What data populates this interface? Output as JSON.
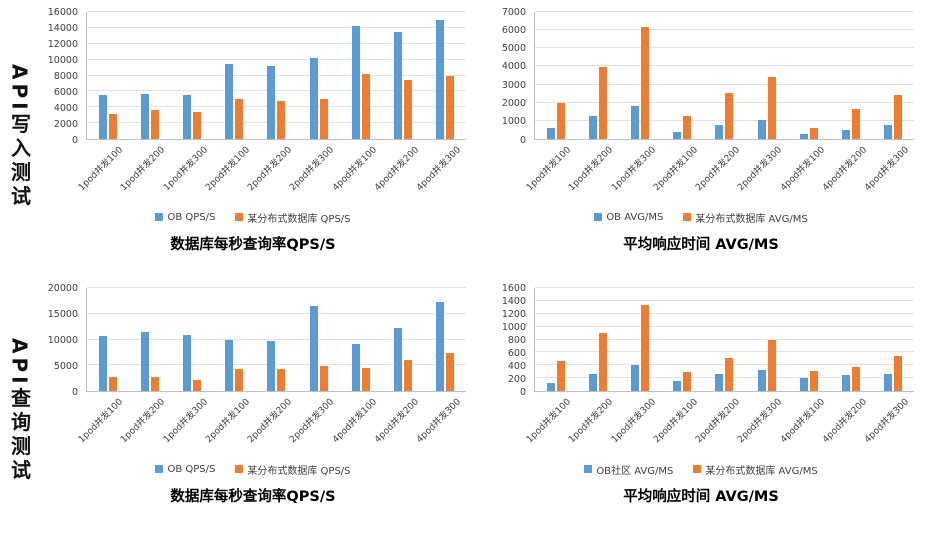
{
  "rows": [
    {
      "label": "API写入测试"
    },
    {
      "label": "API查询测试"
    }
  ],
  "colors": {
    "series_blue": "#5B9BD5",
    "series_orange": "#ED7D31"
  },
  "chart_data": [
    {
      "type": "bar",
      "title": "数据库每秒查询率QPS/S",
      "categories": [
        "1pod并发100",
        "1pod并发200",
        "1pod并发300",
        "2pod并发100",
        "2pod并发200",
        "2pod并发300",
        "4pod并发100",
        "4pod并发200",
        "4pod并发300"
      ],
      "series": [
        {
          "name": "OB QPS/S",
          "color": "#5B9BD5",
          "values": [
            5600,
            5700,
            5600,
            9500,
            9200,
            10200,
            14300,
            13500,
            15000
          ]
        },
        {
          "name": "某分布式数据库 QPS/S",
          "color": "#ED7D31",
          "values": [
            3100,
            3600,
            3400,
            5100,
            4800,
            5000,
            8200,
            7400,
            8000
          ]
        }
      ],
      "ylim": [
        0,
        16000
      ],
      "ytick_step": 2000,
      "grid": true,
      "legend_position": "bottom"
    },
    {
      "type": "bar",
      "title": "平均响应时间 AVG/MS",
      "categories": [
        "1pod并发100",
        "1pod并发200",
        "1pod并发300",
        "2pod并发100",
        "2pod并发200",
        "2pod并发300",
        "4pod并发100",
        "4pod并发200",
        "4pod并发300"
      ],
      "series": [
        {
          "name": "OB AVG/MS",
          "color": "#5B9BD5",
          "values": [
            600,
            1250,
            1800,
            400,
            750,
            1050,
            300,
            520,
            750
          ]
        },
        {
          "name": "某分布式数据库 AVG/MS",
          "color": "#ED7D31",
          "values": [
            2000,
            3950,
            6200,
            1250,
            2550,
            3400,
            620,
            1650,
            2400
          ]
        }
      ],
      "ylim": [
        0,
        7000
      ],
      "ytick_step": 1000,
      "grid": true,
      "legend_position": "bottom"
    },
    {
      "type": "bar",
      "title": "数据库每秒查询率QPS/S",
      "categories": [
        "1pod并发100",
        "1pod并发200",
        "1pod并发300",
        "2pod并发100",
        "2pod并发200",
        "2pod并发300",
        "4pod并发100",
        "4pod并发200",
        "4pod并发300"
      ],
      "series": [
        {
          "name": "OB QPS/S",
          "color": "#5B9BD5",
          "values": [
            10700,
            11500,
            10900,
            9900,
            9700,
            16500,
            9200,
            12300,
            17300
          ]
        },
        {
          "name": "某分布式数据库 QPS/S",
          "color": "#ED7D31",
          "values": [
            2700,
            2800,
            2100,
            4300,
            4200,
            4800,
            4400,
            6100,
            7300
          ]
        }
      ],
      "ylim": [
        0,
        20000
      ],
      "ytick_step": 5000,
      "grid": true,
      "legend_position": "bottom"
    },
    {
      "type": "bar",
      "title": "平均响应时间 AVG/MS",
      "categories": [
        "1pod并发100",
        "1pod并发200",
        "1pod并发300",
        "2pod并发100",
        "2pod并发200",
        "2pod并发300",
        "4pod并发100",
        "4pod并发200",
        "4pod并发300"
      ],
      "series": [
        {
          "name": "OB社区 AVG/MS",
          "color": "#5B9BD5",
          "values": [
            130,
            260,
            410,
            150,
            270,
            330,
            200,
            250,
            260
          ]
        },
        {
          "name": "某分布式数据库 AVG/MS",
          "color": "#ED7D31",
          "values": [
            470,
            900,
            1330,
            300,
            520,
            800,
            310,
            380,
            550
          ]
        }
      ],
      "ylim": [
        0,
        1600
      ],
      "ytick_step": 200,
      "grid": true,
      "legend_position": "bottom"
    }
  ]
}
